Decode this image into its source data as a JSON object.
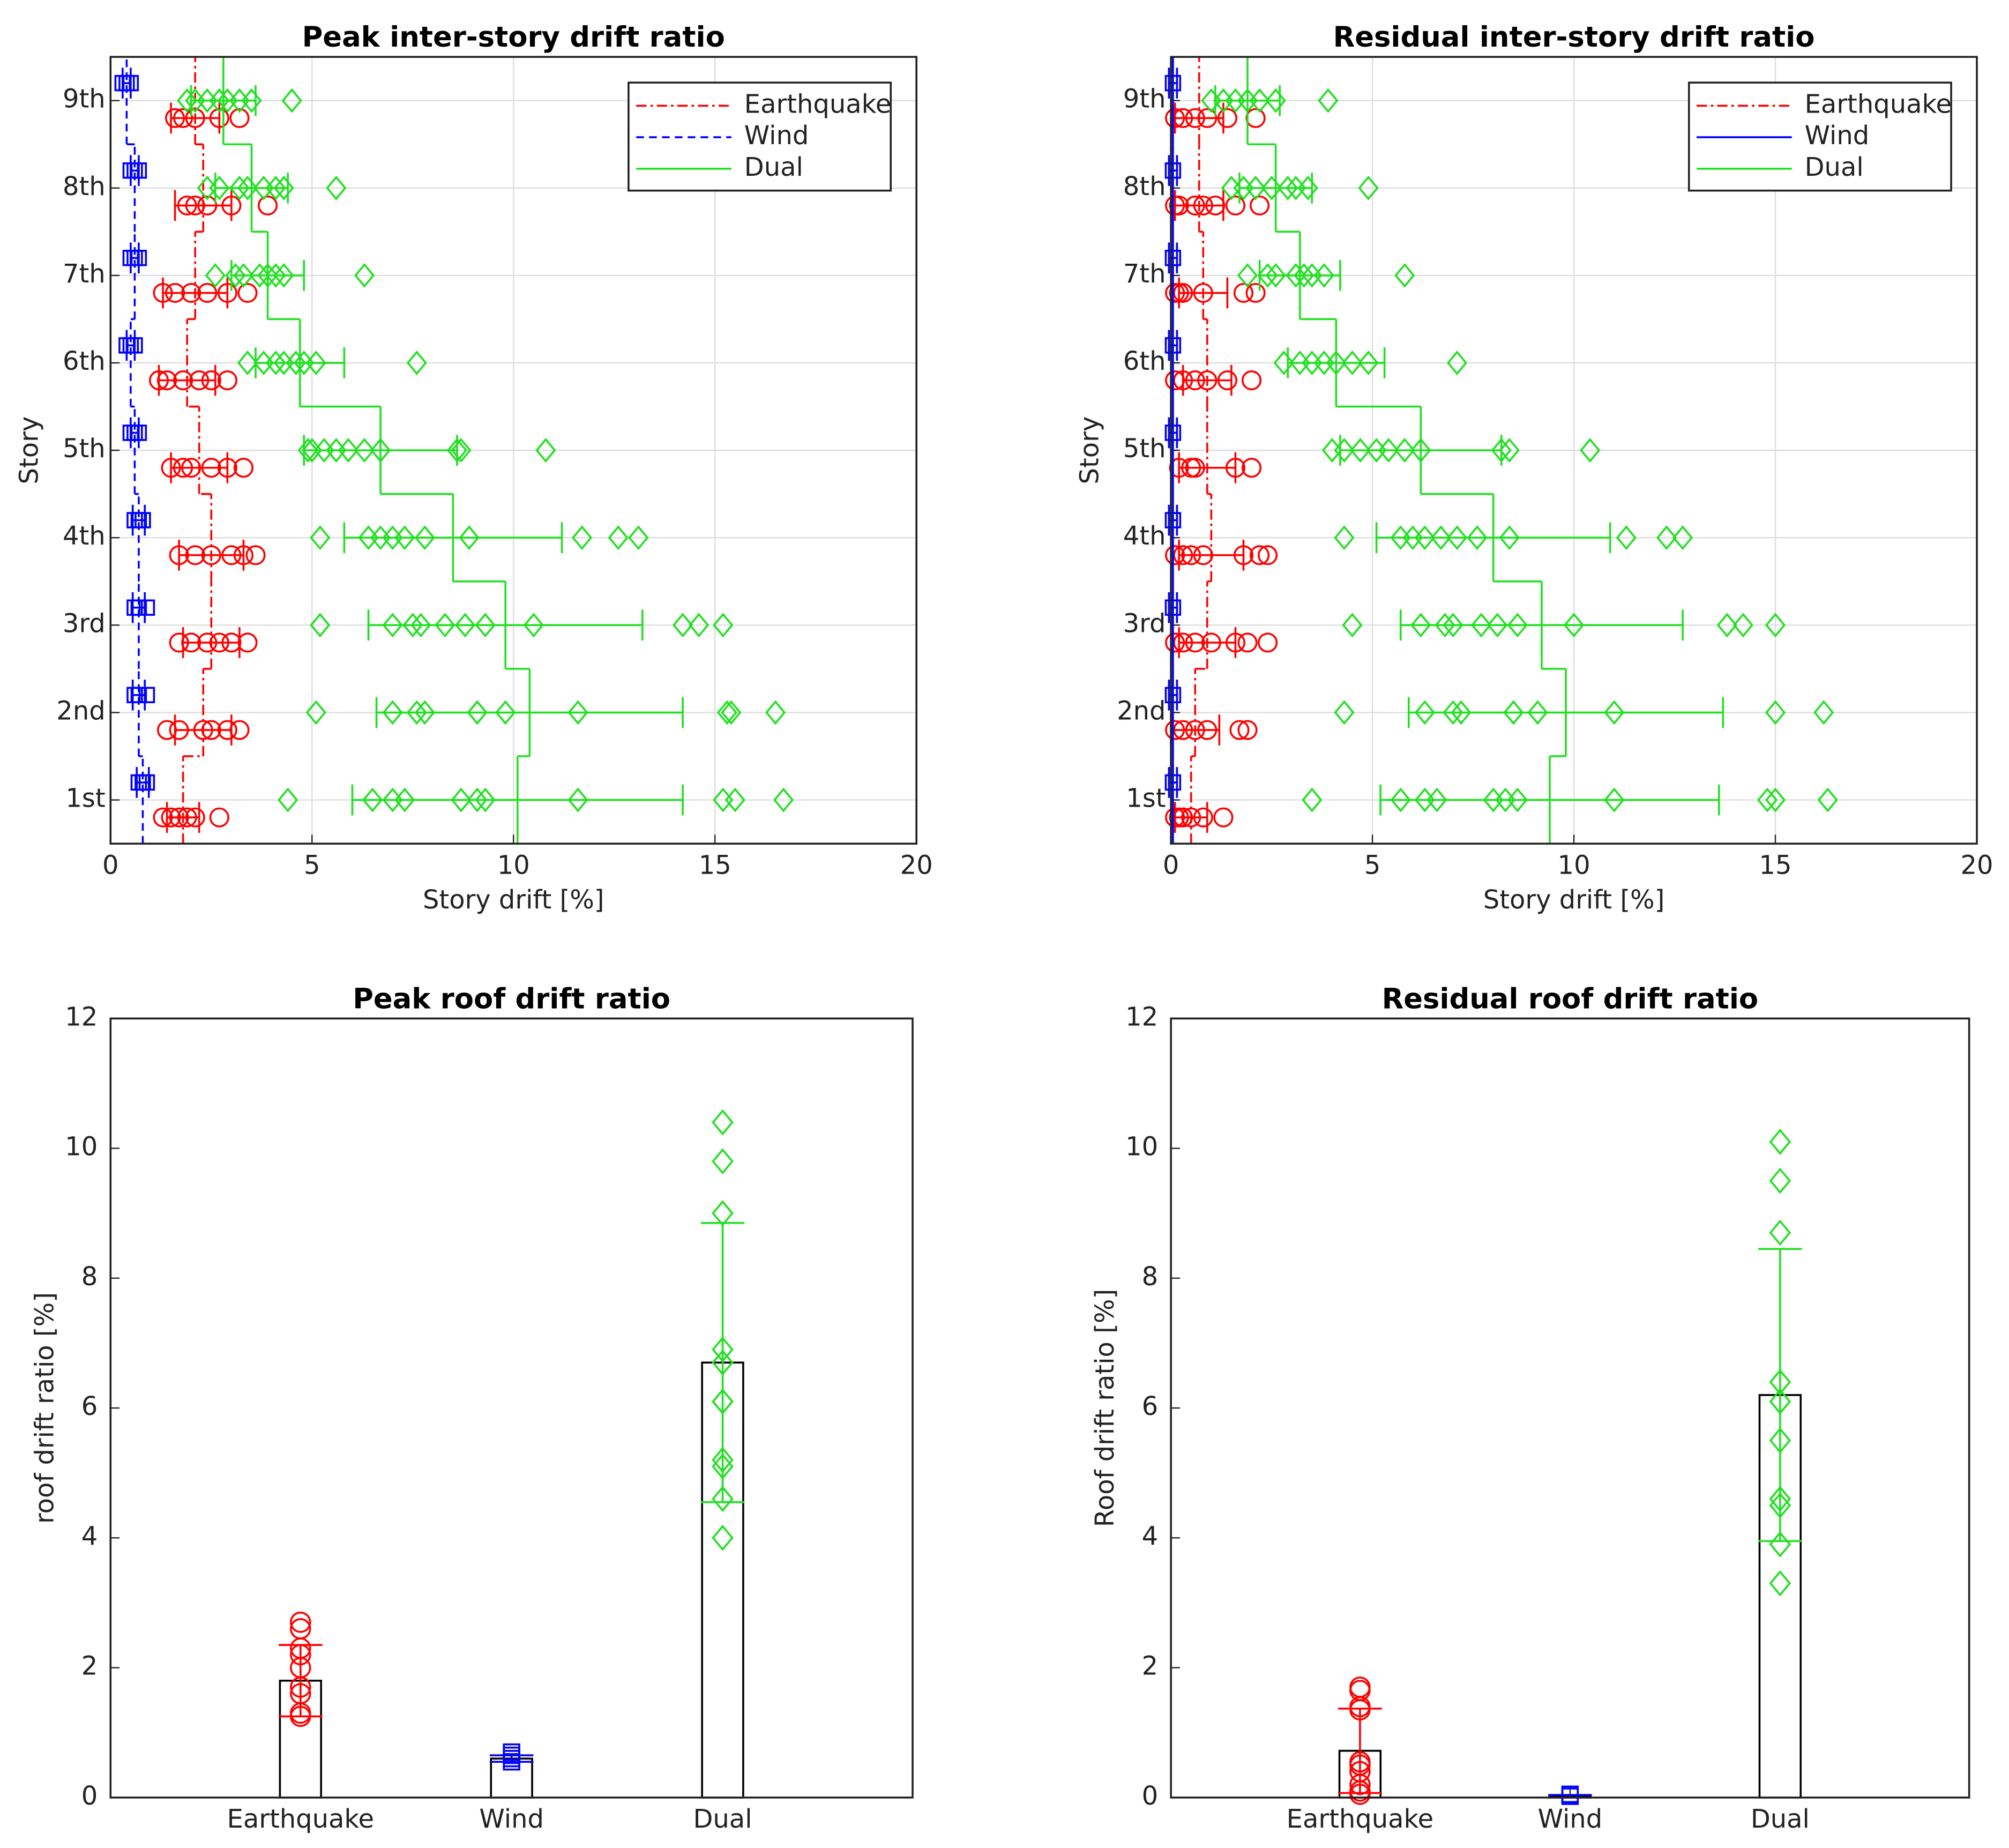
{
  "chart_data": [
    {
      "type": "story-scatter",
      "title": "Peak inter-story drift ratio",
      "xlabel": "Story drift [%]",
      "ylabel": "Story",
      "categories": [
        "1st",
        "2nd",
        "3rd",
        "4th",
        "5th",
        "6th",
        "7th",
        "8th",
        "9th"
      ],
      "xlim": [
        0,
        20
      ],
      "xticks": [
        0,
        5,
        10,
        15,
        20
      ],
      "grid": true,
      "legend": "upper right",
      "series": [
        {
          "name": "Earthquake",
          "color": "#ff0000",
          "marker": "circle",
          "line": "dashdot",
          "means": [
            1.8,
            2.3,
            2.5,
            2.5,
            2.2,
            1.9,
            2.1,
            2.3,
            2.1
          ],
          "errors": [
            0.4,
            0.7,
            0.7,
            0.8,
            0.7,
            0.7,
            0.8,
            0.7,
            0.6
          ],
          "points": [
            [
              1.3,
              1.5,
              1.7,
              1.9,
              2.1,
              2.7
            ],
            [
              1.4,
              1.7,
              2.3,
              2.5,
              2.9,
              3.2
            ],
            [
              1.7,
              2.0,
              2.4,
              2.7,
              3.0,
              3.4
            ],
            [
              1.7,
              2.1,
              2.5,
              3.0,
              3.3,
              3.6
            ],
            [
              1.5,
              1.8,
              2.0,
              2.5,
              2.9,
              3.3
            ],
            [
              1.2,
              1.4,
              1.8,
              2.2,
              2.5,
              2.9
            ],
            [
              1.3,
              1.6,
              2.0,
              2.4,
              2.9,
              3.4
            ],
            [
              1.9,
              2.1,
              2.4,
              3.0,
              3.9
            ],
            [
              1.6,
              1.8,
              2.1,
              2.7,
              3.2
            ]
          ]
        },
        {
          "name": "Wind",
          "color": "#0000ff",
          "marker": "square",
          "line": "dashed",
          "means": [
            0.8,
            0.7,
            0.7,
            0.7,
            0.6,
            0.5,
            0.6,
            0.6,
            0.4
          ],
          "errors": [
            0.15,
            0.15,
            0.15,
            0.15,
            0.1,
            0.1,
            0.1,
            0.1,
            0.1
          ],
          "points": [
            [
              0.7,
              0.8,
              0.9
            ],
            [
              0.6,
              0.7,
              0.9
            ],
            [
              0.6,
              0.7,
              0.9
            ],
            [
              0.6,
              0.7,
              0.8
            ],
            [
              0.5,
              0.6,
              0.7
            ],
            [
              0.4,
              0.5,
              0.6
            ],
            [
              0.5,
              0.6,
              0.7
            ],
            [
              0.5,
              0.6,
              0.7
            ],
            [
              0.3,
              0.4,
              0.5
            ]
          ]
        },
        {
          "name": "Dual",
          "color": "#20e020",
          "marker": "diamond",
          "line": "solid",
          "means": [
            10.1,
            10.4,
            9.8,
            8.5,
            6.7,
            4.7,
            3.9,
            3.5,
            2.8
          ],
          "errors": [
            4.1,
            3.8,
            3.4,
            2.7,
            1.9,
            1.1,
            0.9,
            0.9,
            0.8
          ],
          "points": [
            [
              4.4,
              6.5,
              7.0,
              7.3,
              8.7,
              9.1,
              9.3,
              11.6,
              15.2,
              15.5,
              16.7
            ],
            [
              5.1,
              7.0,
              7.6,
              7.8,
              9.1,
              9.1,
              9.8,
              11.6,
              15.3,
              15.4,
              16.5
            ],
            [
              5.2,
              7.0,
              7.5,
              7.7,
              8.3,
              8.8,
              9.3,
              10.5,
              14.2,
              14.6,
              15.2
            ],
            [
              5.2,
              6.4,
              6.7,
              7.0,
              7.3,
              7.8,
              8.9,
              11.7,
              12.6,
              13.1
            ],
            [
              4.9,
              5.0,
              5.3,
              5.6,
              5.9,
              6.3,
              6.7,
              8.6,
              8.7,
              10.8
            ],
            [
              3.4,
              3.8,
              4.1,
              4.3,
              4.6,
              4.8,
              5.1,
              7.6
            ],
            [
              2.6,
              3.1,
              3.3,
              3.7,
              3.9,
              4.1,
              4.3,
              6.3
            ],
            [
              2.4,
              2.7,
              3.2,
              3.4,
              3.8,
              4.1,
              4.3,
              5.6
            ],
            [
              1.9,
              2.1,
              2.4,
              2.7,
              2.9,
              3.2,
              3.5,
              4.5
            ]
          ]
        }
      ]
    },
    {
      "type": "story-scatter",
      "title": "Residual inter-story drift ratio",
      "xlabel": "Story drift [%]",
      "ylabel": "Story",
      "categories": [
        "1st",
        "2nd",
        "3rd",
        "4th",
        "5th",
        "6th",
        "7th",
        "8th",
        "9th"
      ],
      "xlim": [
        0,
        20
      ],
      "xticks": [
        0,
        5,
        10,
        15,
        20
      ],
      "grid": true,
      "legend": "upper right",
      "series": [
        {
          "name": "Earthquake",
          "color": "#ff0000",
          "marker": "circle",
          "line": "dashdot",
          "means": [
            0.5,
            0.6,
            0.9,
            1.0,
            0.9,
            0.9,
            0.8,
            0.7,
            0.7
          ],
          "errors": [
            0.4,
            0.6,
            0.7,
            0.8,
            0.7,
            0.6,
            0.6,
            0.6,
            0.6
          ],
          "points": [
            [
              0.1,
              0.2,
              0.3,
              0.5,
              0.8,
              1.3
            ],
            [
              0.1,
              0.3,
              0.6,
              0.9,
              1.7,
              1.9
            ],
            [
              0.1,
              0.3,
              0.6,
              1.0,
              1.6,
              1.9,
              2.4
            ],
            [
              0.1,
              0.3,
              0.5,
              0.8,
              1.8,
              2.2,
              2.4
            ],
            [
              0.2,
              0.5,
              0.6,
              1.6,
              2.0
            ],
            [
              0.1,
              0.3,
              0.6,
              0.9,
              1.4,
              2.0
            ],
            [
              0.1,
              0.2,
              0.3,
              0.8,
              1.8,
              2.1
            ],
            [
              0.1,
              0.2,
              0.6,
              0.8,
              1.1,
              1.6,
              2.2
            ],
            [
              0.1,
              0.3,
              0.6,
              0.9,
              1.4,
              2.1
            ]
          ]
        },
        {
          "name": "Wind",
          "color": "#0000ff",
          "marker": "square",
          "line": "solid",
          "means": [
            0.05,
            0.05,
            0.05,
            0.05,
            0.05,
            0.05,
            0.05,
            0.05,
            0.05
          ],
          "errors": [
            0.1,
            0.1,
            0.1,
            0.1,
            0.1,
            0.1,
            0.1,
            0.1,
            0.1
          ],
          "points": [
            [
              0.05
            ],
            [
              0.05
            ],
            [
              0.05
            ],
            [
              0.05
            ],
            [
              0.05
            ],
            [
              0.05
            ],
            [
              0.05
            ],
            [
              0.05
            ],
            [
              0.05
            ]
          ]
        },
        {
          "name": "Dual",
          "color": "#20e020",
          "marker": "diamond",
          "line": "solid",
          "means": [
            9.4,
            9.8,
            9.2,
            8.0,
            6.2,
            4.1,
            3.2,
            2.6,
            1.9
          ],
          "errors": [
            4.2,
            3.9,
            3.5,
            2.9,
            2.0,
            1.2,
            1.0,
            0.9,
            0.8
          ],
          "points": [
            [
              3.5,
              5.7,
              6.3,
              6.6,
              8.0,
              8.3,
              8.6,
              11.0,
              14.8,
              15.0,
              16.3
            ],
            [
              4.3,
              6.3,
              7.0,
              7.2,
              8.5,
              8.5,
              9.1,
              11.0,
              15.0,
              16.2
            ],
            [
              4.5,
              6.2,
              6.8,
              7.0,
              7.7,
              8.1,
              8.6,
              10.0,
              13.8,
              14.2,
              15.0
            ],
            [
              4.3,
              5.7,
              6.0,
              6.3,
              6.7,
              7.1,
              7.6,
              8.4,
              11.3,
              12.3,
              12.7
            ],
            [
              4.0,
              4.3,
              4.7,
              5.1,
              5.4,
              5.8,
              6.2,
              8.2,
              8.4,
              10.4
            ],
            [
              2.8,
              3.2,
              3.5,
              3.8,
              4.1,
              4.5,
              4.9,
              7.1
            ],
            [
              1.9,
              2.4,
              2.6,
              3.1,
              3.3,
              3.5,
              3.8,
              5.8
            ],
            [
              1.5,
              1.8,
              2.1,
              2.5,
              2.9,
              3.1,
              3.4,
              4.9
            ],
            [
              1.0,
              1.3,
              1.6,
              1.9,
              2.2,
              2.6,
              3.9
            ]
          ]
        }
      ]
    },
    {
      "type": "bar",
      "title": "Peak roof drift ratio",
      "ylabel": "roof drift ratio [%]",
      "categories": [
        "Earthquake",
        "Wind",
        "Dual"
      ],
      "ylim": [
        0,
        12
      ],
      "yticks": [
        0,
        2,
        4,
        6,
        8,
        10,
        12
      ],
      "grid": false,
      "values": [
        1.8,
        0.6,
        6.7
      ],
      "errors": [
        0.55,
        0.05,
        2.15
      ],
      "colors": [
        "#ff0000",
        "#0000ff",
        "#20e020"
      ],
      "markers": [
        "circle",
        "square",
        "diamond"
      ],
      "points": [
        [
          1.25,
          1.3,
          1.6,
          1.7,
          2.0,
          2.2,
          2.3,
          2.6,
          2.7
        ],
        [
          0.55,
          0.6,
          0.65,
          0.7
        ],
        [
          4.0,
          4.6,
          5.1,
          5.2,
          6.1,
          6.1,
          6.7,
          6.9,
          9.0,
          9.8,
          10.4
        ]
      ]
    },
    {
      "type": "bar",
      "title": "Residual roof drift ratio",
      "ylabel": "Roof drift ratio [%]",
      "categories": [
        "Earthquake",
        "Wind",
        "Dual"
      ],
      "ylim": [
        0,
        12
      ],
      "yticks": [
        0,
        2,
        4,
        6,
        8,
        10,
        12
      ],
      "grid": false,
      "values": [
        0.72,
        0.02,
        6.2
      ],
      "errors": [
        0.65,
        0.02,
        2.25
      ],
      "colors": [
        "#ff0000",
        "#0000ff",
        "#20e020"
      ],
      "markers": [
        "circle",
        "square",
        "diamond"
      ],
      "points": [
        [
          0.05,
          0.1,
          0.2,
          0.4,
          0.5,
          0.55,
          1.35,
          1.4,
          1.65,
          1.7
        ],
        [
          0.02,
          0.05
        ],
        [
          3.3,
          3.9,
          4.5,
          4.6,
          5.5,
          6.1,
          6.4,
          8.7,
          9.5,
          10.1
        ]
      ]
    }
  ]
}
